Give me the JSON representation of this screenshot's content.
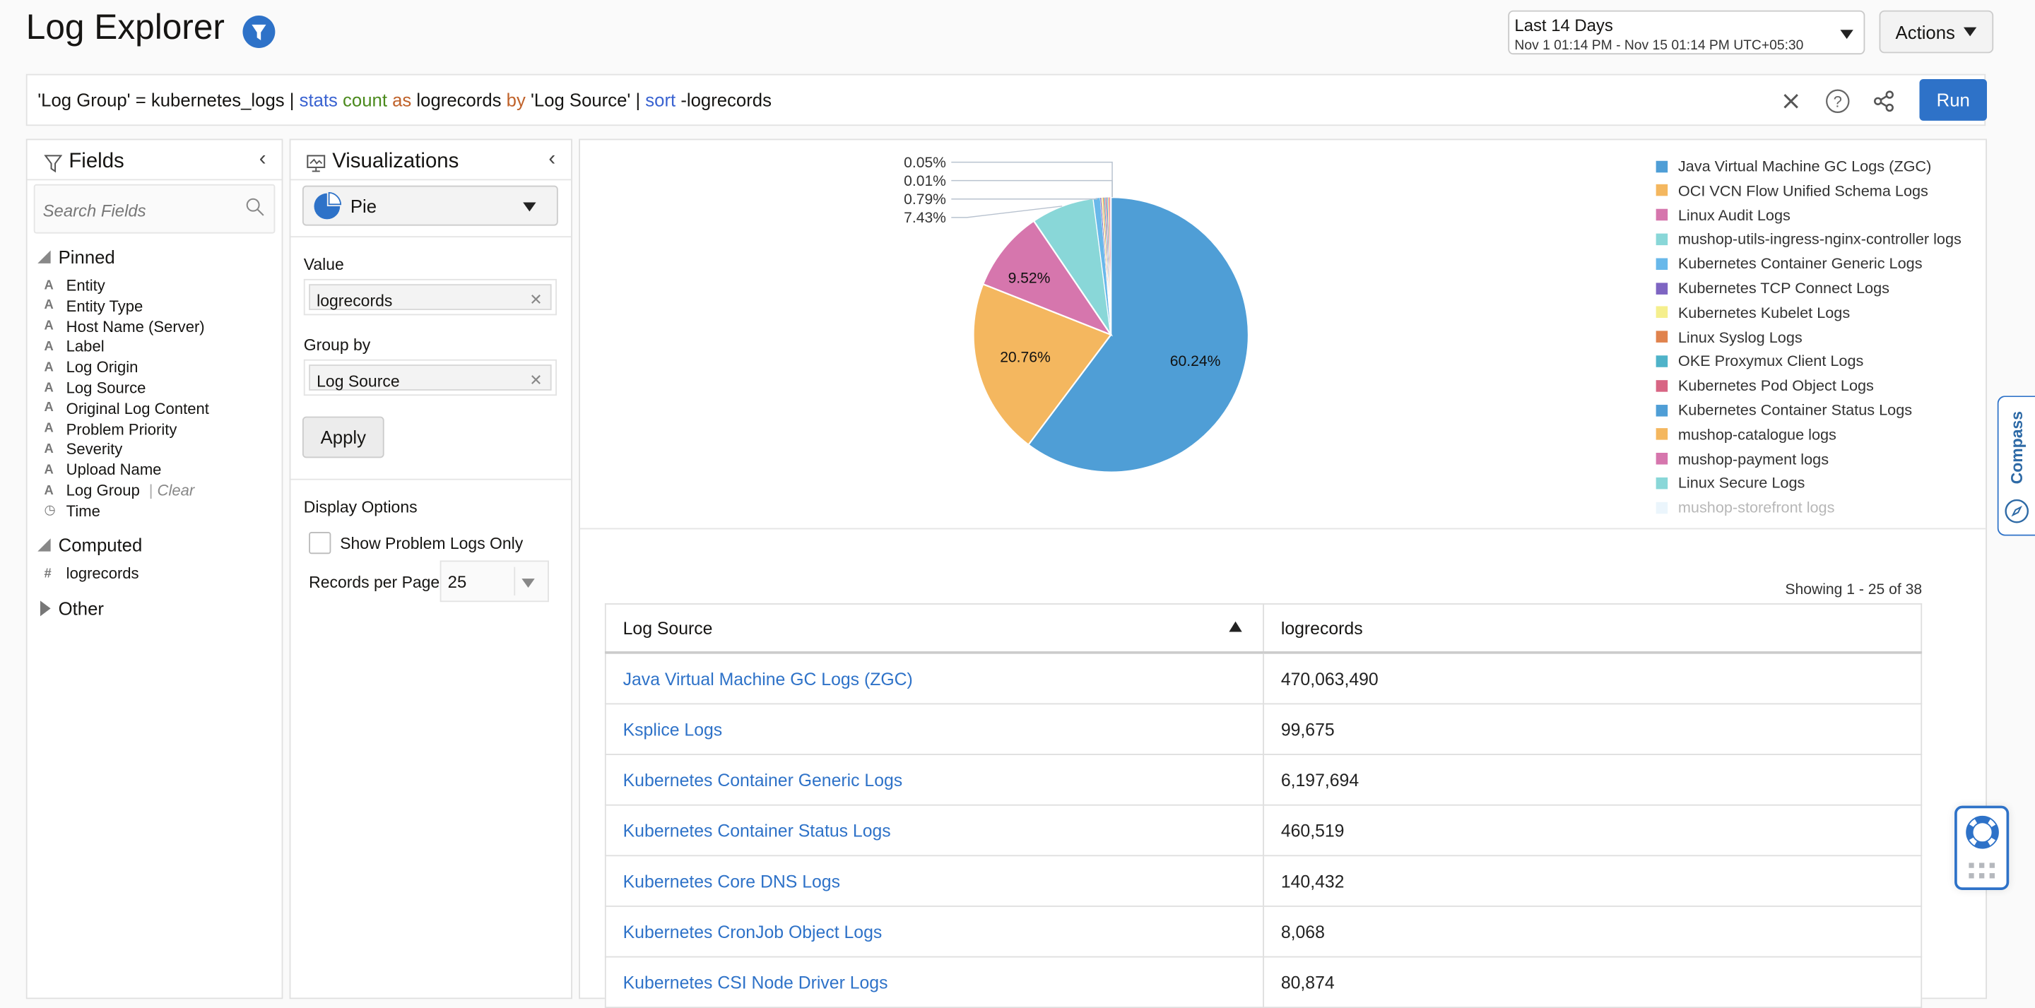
{
  "header": {
    "title": "Log Explorer",
    "filter_icon": "filter-icon"
  },
  "time_range": {
    "label": "Last 14 Days",
    "range": "Nov 1 01:14 PM - Nov 15 01:14 PM UTC+05:30"
  },
  "actions_label": "Actions",
  "query": {
    "tokens": [
      {
        "text": "'Log Group' = kubernetes_logs | ",
        "style": "plain"
      },
      {
        "text": "stats",
        "style": "blue"
      },
      {
        "text": " ",
        "style": "plain"
      },
      {
        "text": "count",
        "style": "green"
      },
      {
        "text": " ",
        "style": "plain"
      },
      {
        "text": "as",
        "style": "orange"
      },
      {
        "text": " logrecords ",
        "style": "plain"
      },
      {
        "text": "by",
        "style": "orange"
      },
      {
        "text": " 'Log Source' | ",
        "style": "plain"
      },
      {
        "text": "sort",
        "style": "blue"
      },
      {
        "text": " -logrecords",
        "style": "plain"
      }
    ],
    "run_label": "Run"
  },
  "fields": {
    "title": "Fields",
    "search_placeholder": "Search Fields",
    "pinned_label": "Pinned",
    "pinned": [
      {
        "type": "A",
        "label": "Entity"
      },
      {
        "type": "A",
        "label": "Entity Type"
      },
      {
        "type": "A",
        "label": "Host Name (Server)"
      },
      {
        "type": "A",
        "label": "Label"
      },
      {
        "type": "A",
        "label": "Log Origin"
      },
      {
        "type": "A",
        "label": "Log Source"
      },
      {
        "type": "A",
        "label": "Original Log Content"
      },
      {
        "type": "A",
        "label": "Problem Priority"
      },
      {
        "type": "A",
        "label": "Severity"
      },
      {
        "type": "A",
        "label": "Upload Name"
      },
      {
        "type": "A",
        "label": "Log Group",
        "clear": "Clear"
      },
      {
        "type": "clock",
        "label": "Time"
      }
    ],
    "computed_label": "Computed",
    "computed": [
      {
        "type": "#",
        "label": "logrecords"
      }
    ],
    "other_label": "Other"
  },
  "visualizations": {
    "title": "Visualizations",
    "selected": "Pie",
    "value_label": "Value",
    "value": "logrecords",
    "group_by_label": "Group by",
    "group_by": "Log Source",
    "apply_label": "Apply",
    "display_options_label": "Display Options",
    "show_problem_logs_label": "Show Problem Logs Only",
    "show_problem_logs": false,
    "records_per_page_label": "Records per Page",
    "records_per_page": "25"
  },
  "chart_data": {
    "type": "pie",
    "slices": [
      {
        "name": "Java Virtual Machine GC Logs (ZGC)",
        "value": 60.24,
        "label": "60.24%",
        "color": "#4f9ed6"
      },
      {
        "name": "OCI VCN Flow Unified Schema Logs",
        "value": 20.76,
        "label": "20.76%",
        "color": "#f4b75f"
      },
      {
        "name": "Linux Audit Logs",
        "value": 9.52,
        "label": "9.52%",
        "color": "#d676ad"
      },
      {
        "name": "mushop-utils-ingress-nginx-controller logs",
        "value": 7.43,
        "label": "7.43%",
        "color": "#89d7d8"
      },
      {
        "name": "Kubernetes Container Generic Logs",
        "value": 0.79,
        "label": "0.79%",
        "color": "#68b8ea"
      },
      {
        "name": "Kubernetes TCP Connect Logs",
        "value": null,
        "color": "#7e65c2"
      },
      {
        "name": "Kubernetes Kubelet Logs",
        "value": null,
        "color": "#f5ef8d"
      },
      {
        "name": "Linux Syslog Logs",
        "value": null,
        "color": "#e0834d"
      },
      {
        "name": "OKE Proxymux Client Logs",
        "value": null,
        "color": "#4fb3c9"
      },
      {
        "name": "Kubernetes Pod Object Logs",
        "value": null,
        "color": "#d86584"
      },
      {
        "name": "Kubernetes Container Status Logs",
        "value": null,
        "color": "#4f9ed6"
      },
      {
        "name": "mushop-catalogue logs",
        "value": null,
        "color": "#f4b75f"
      },
      {
        "name": "mushop-payment logs",
        "value": null,
        "color": "#d676ad"
      },
      {
        "name": "Linux Secure Logs",
        "value": 0.01,
        "label": "0.01%",
        "color": "#89d7d8"
      },
      {
        "name": "mushop-storefront logs",
        "value": 0.05,
        "label": "0.05%",
        "color": "#c7e4f7"
      }
    ],
    "outside_labels": [
      "0.05%",
      "0.01%",
      "0.79%",
      "7.43%"
    ],
    "legend_position": "right"
  },
  "table": {
    "showing": "Showing 1 - 25 of 38",
    "columns": [
      "Log Source",
      "logrecords"
    ],
    "sort": "ascending",
    "rows": [
      [
        "Java Virtual Machine GC Logs (ZGC)",
        "470,063,490"
      ],
      [
        "Ksplice Logs",
        "99,675"
      ],
      [
        "Kubernetes Container Generic Logs",
        "6,197,694"
      ],
      [
        "Kubernetes Container Status Logs",
        "460,519"
      ],
      [
        "Kubernetes Core DNS Logs",
        "140,432"
      ],
      [
        "Kubernetes CronJob Object Logs",
        "8,068"
      ],
      [
        "Kubernetes CSI Node Driver Logs",
        "80,874"
      ]
    ]
  },
  "compass_label": "Compass",
  "colors": {
    "accent": "#2e72c8",
    "link": "#2e72c8"
  }
}
